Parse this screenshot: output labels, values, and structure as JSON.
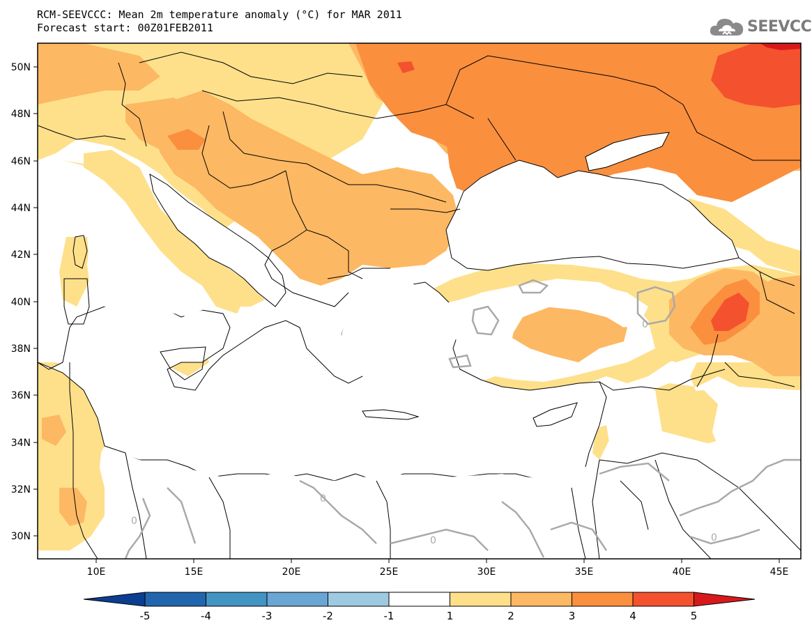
{
  "title": {
    "line1": "RCM-SEEVCCC: Mean 2m temperature anomaly (°C) for MAR 2011",
    "line2": "Forecast start: 00Z01FEB2011"
  },
  "logo": {
    "text": "SEEVCCC",
    "icon": "cloud-icon"
  },
  "map": {
    "lon_range": [
      7,
      46
    ],
    "lat_range": [
      29,
      51
    ],
    "x_ticks": [
      "10E",
      "15E",
      "20E",
      "25E",
      "30E",
      "35E",
      "40E",
      "45E"
    ],
    "y_ticks": [
      "50N",
      "48N",
      "46N",
      "44N",
      "42N",
      "40N",
      "38N",
      "36N",
      "34N",
      "32N",
      "30N"
    ],
    "contour_labels": [
      "0",
      "0",
      "0",
      "0",
      "0"
    ]
  },
  "colorbar": {
    "labels": [
      "-5",
      "-4",
      "-3",
      "-2",
      "-1",
      "1",
      "2",
      "3",
      "4",
      "5"
    ],
    "colors": {
      "below_-5": "#0b3d91",
      "-5_-4": "#2166ac",
      "-4_-3": "#4393c3",
      "-3_-2": "#6aa6d4",
      "-2_-1": "#9ecae1",
      "-1_1": "#ffffff",
      "1_2": "#fee08b",
      "2_3": "#fdb863",
      "3_4": "#fa8f3e",
      "4_5": "#f4512f",
      "above_5": "#d7191c"
    }
  }
}
